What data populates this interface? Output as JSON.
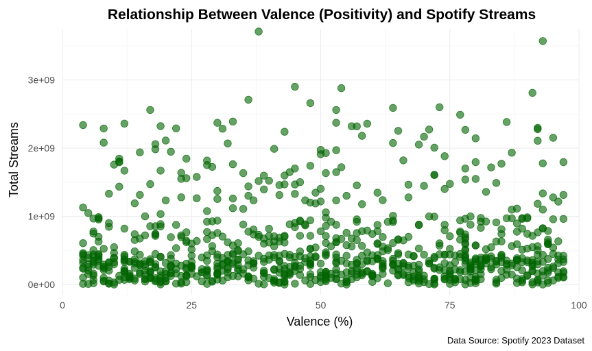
{
  "chart_data": {
    "type": "scatter",
    "title": "Relationship Between Valence (Positivity) and Spotify Streams",
    "xlabel": "Valence (%)",
    "ylabel": "Total Streams",
    "caption": "Data Source: Spotify 2023 Dataset",
    "xlim": [
      0,
      100
    ],
    "ylim": [
      -150000000,
      3750000000
    ],
    "x_ticks": [
      0,
      25,
      50,
      75,
      100
    ],
    "x_tick_labels": [
      "0",
      "25",
      "50",
      "75",
      "100"
    ],
    "y_ticks": [
      0,
      1000000000,
      2000000000,
      3000000000
    ],
    "y_tick_labels": [
      "0e+00",
      "1e+09",
      "2e+09",
      "3e+09"
    ],
    "grid": true,
    "point_color": "#006400",
    "point_opacity": 0.6,
    "notable_points": [
      {
        "x": 38,
        "y": 3710000000
      },
      {
        "x": 93,
        "y": 3570000000
      },
      {
        "x": 45,
        "y": 2900000000
      },
      {
        "x": 54,
        "y": 2880000000
      },
      {
        "x": 91,
        "y": 2810000000
      },
      {
        "x": 36,
        "y": 2710000000
      },
      {
        "x": 48,
        "y": 2660000000
      },
      {
        "x": 73,
        "y": 2600000000
      },
      {
        "x": 64,
        "y": 2590000000
      },
      {
        "x": 17,
        "y": 2560000000
      },
      {
        "x": 53,
        "y": 2560000000
      },
      {
        "x": 77,
        "y": 2490000000
      },
      {
        "x": 12,
        "y": 2360000000
      },
      {
        "x": 22,
        "y": 2290000000
      },
      {
        "x": 57,
        "y": 2320000000
      }
    ]
  }
}
